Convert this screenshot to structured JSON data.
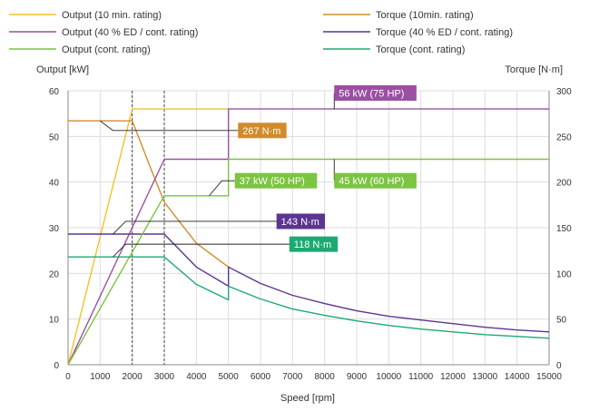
{
  "chart_data": {
    "type": "line",
    "xlabel": "Speed [rpm]",
    "ylabel_left": "Output [kW]",
    "ylabel_right": "Torque [N·m]",
    "xlim": [
      0,
      15000
    ],
    "ylim_left": [
      0,
      60
    ],
    "ylim_right": [
      0,
      300
    ],
    "x_ticks": [
      0,
      1000,
      2000,
      3000,
      4000,
      5000,
      6000,
      7000,
      8000,
      9000,
      10000,
      11000,
      12000,
      13000,
      14000,
      15000
    ],
    "y_ticks_left": [
      0,
      10,
      20,
      30,
      40,
      50,
      60
    ],
    "y_ticks_right": [
      0,
      50,
      100,
      150,
      200,
      250,
      300
    ],
    "grid": true,
    "legend_position": "top",
    "series": [
      {
        "name": "Output (10 min. rating)",
        "axis": "left",
        "color": "#f5c02a",
        "points": [
          [
            0,
            0
          ],
          [
            2000,
            56
          ],
          [
            5000,
            56
          ]
        ]
      },
      {
        "name": "Torque (10min. rating)",
        "axis": "right",
        "color": "#d28b2b",
        "points": [
          [
            0,
            267
          ],
          [
            2000,
            267
          ],
          [
            2600,
            213
          ],
          [
            3000,
            178
          ],
          [
            4000,
            133
          ],
          [
            5000,
            107
          ]
        ]
      },
      {
        "name": "Output (40 % ED / cont. rating)",
        "axis": "left",
        "color": "#9b4fa2",
        "points": [
          [
            0,
            0
          ],
          [
            3000,
            45
          ],
          [
            5000,
            45
          ],
          [
            5000,
            56
          ],
          [
            15000,
            56
          ]
        ]
      },
      {
        "name": "Torque (40 % ED / cont. rating)",
        "axis": "right",
        "color": "#5c3591",
        "points": [
          [
            0,
            143
          ],
          [
            3000,
            143
          ],
          [
            4000,
            107
          ],
          [
            5000,
            86
          ],
          [
            5000,
            107
          ],
          [
            6000,
            89
          ],
          [
            7000,
            76
          ],
          [
            8000,
            67
          ],
          [
            9000,
            59
          ],
          [
            10000,
            53
          ],
          [
            11000,
            49
          ],
          [
            12000,
            45
          ],
          [
            13000,
            41
          ],
          [
            14000,
            38
          ],
          [
            15000,
            36
          ]
        ]
      },
      {
        "name": "Output (cont. rating)",
        "axis": "left",
        "color": "#7cc443",
        "points": [
          [
            0,
            0
          ],
          [
            3000,
            37
          ],
          [
            5000,
            37
          ],
          [
            5000,
            45
          ],
          [
            15000,
            45
          ]
        ]
      },
      {
        "name": "Torque (cont. rating)",
        "axis": "right",
        "color": "#1daa72",
        "points": [
          [
            0,
            118
          ],
          [
            3000,
            118
          ],
          [
            4000,
            88
          ],
          [
            5000,
            71
          ],
          [
            5000,
            86
          ],
          [
            6000,
            72
          ],
          [
            7000,
            61
          ],
          [
            8000,
            54
          ],
          [
            9000,
            48
          ],
          [
            10000,
            43
          ],
          [
            11000,
            39
          ],
          [
            12000,
            36
          ],
          [
            13000,
            33
          ],
          [
            14000,
            31
          ],
          [
            15000,
            29
          ]
        ]
      }
    ],
    "reference_lines_x": [
      2000,
      3000
    ],
    "annotations": [
      {
        "text": "56 kW (75 HP)",
        "color": "#9b4fa2",
        "x": 8300,
        "y_left": 59.5,
        "points_to": [
          [
            8300,
            56
          ]
        ]
      },
      {
        "text": "267 N·m",
        "color": "#d28b2b",
        "x": 5300,
        "y_left": 51.3,
        "points_to": [
          [
            1000,
            53.4
          ]
        ]
      },
      {
        "text": "37 kW (50 HP)",
        "color": "#7cc443",
        "x": 5200,
        "y_left": 40.3,
        "points_to": [
          [
            4400,
            37
          ]
        ]
      },
      {
        "text": "45 kW (60 HP)",
        "color": "#7cc443",
        "x": 8300,
        "y_left": 40.3,
        "points_to": [
          [
            8300,
            45
          ]
        ]
      },
      {
        "text": "143 N·m",
        "color": "#5c3591",
        "x": 6500,
        "y_left": 31.4,
        "points_to": [
          [
            1400,
            28.6
          ]
        ]
      },
      {
        "text": "118 N·m",
        "color": "#1daa72",
        "x": 6900,
        "y_left": 26.4,
        "points_to": [
          [
            1400,
            23.6
          ]
        ]
      }
    ]
  },
  "legend": [
    {
      "label": "Output (10 min. rating)",
      "color": "#f5c02a"
    },
    {
      "label": "Torque (10min. rating)",
      "color": "#d28b2b"
    },
    {
      "label": "Output (40 % ED / cont. rating)",
      "color": "#9b4fa2"
    },
    {
      "label": "Torque (40 % ED / cont. rating)",
      "color": "#5c3591"
    },
    {
      "label": "Output (cont. rating)",
      "color": "#7cc443"
    },
    {
      "label": "Torque (cont. rating)",
      "color": "#1daa72"
    }
  ]
}
